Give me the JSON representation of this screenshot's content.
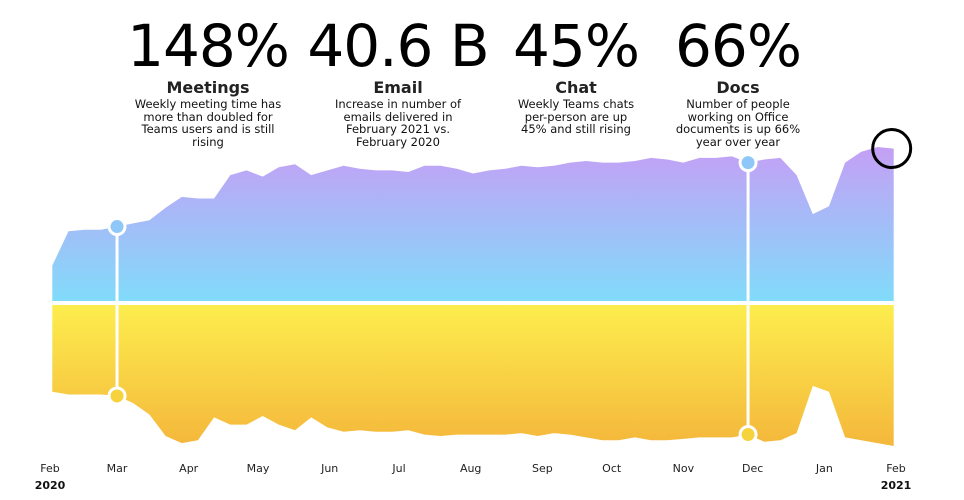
{
  "stats": [
    {
      "value": "148%",
      "name": "Meetings",
      "description": "Weekly meeting time has more than doubled for Teams users and is still rising"
    },
    {
      "value": "40.6 B",
      "name": "Email",
      "description": "Increase in number of emails delivered in February 2021 vs. February 2020"
    },
    {
      "value": "45%",
      "name": "Chat",
      "description": "Weekly Teams chats per-person are up 45% and still rising"
    },
    {
      "value": "66%",
      "name": "Docs",
      "description": "Number of people working on Office documents is up 66% year over year"
    }
  ],
  "chart_data": {
    "type": "area",
    "title": "",
    "xlabel": "",
    "ylabel": "",
    "grid": false,
    "legend": "none",
    "x_ticks": [
      {
        "date": "2020-02-01",
        "label": "Feb",
        "year": "2020"
      },
      {
        "date": "2020-03-01",
        "label": "Mar"
      },
      {
        "date": "2020-04-01",
        "label": "Apr"
      },
      {
        "date": "2020-05-01",
        "label": "May"
      },
      {
        "date": "2020-06-01",
        "label": "Jun"
      },
      {
        "date": "2020-07-01",
        "label": "Jul"
      },
      {
        "date": "2020-08-01",
        "label": "Aug"
      },
      {
        "date": "2020-09-01",
        "label": "Sep"
      },
      {
        "date": "2020-10-01",
        "label": "Oct"
      },
      {
        "date": "2020-11-01",
        "label": "Nov"
      },
      {
        "date": "2020-12-01",
        "label": "Dec"
      },
      {
        "date": "2021-01-01",
        "label": "Jan"
      },
      {
        "date": "2021-02-01",
        "label": "Feb",
        "year": "2021"
      }
    ],
    "x": [
      "2020-02-02",
      "2020-02-09",
      "2020-02-16",
      "2020-02-23",
      "2020-03-01",
      "2020-03-08",
      "2020-03-15",
      "2020-03-22",
      "2020-03-29",
      "2020-04-05",
      "2020-04-12",
      "2020-04-19",
      "2020-04-26",
      "2020-05-03",
      "2020-05-10",
      "2020-05-17",
      "2020-05-24",
      "2020-05-31",
      "2020-06-07",
      "2020-06-14",
      "2020-06-21",
      "2020-06-28",
      "2020-07-05",
      "2020-07-12",
      "2020-07-19",
      "2020-07-26",
      "2020-08-02",
      "2020-08-09",
      "2020-08-16",
      "2020-08-23",
      "2020-08-30",
      "2020-09-06",
      "2020-09-13",
      "2020-09-20",
      "2020-09-27",
      "2020-10-04",
      "2020-10-11",
      "2020-10-18",
      "2020-10-25",
      "2020-11-01",
      "2020-11-08",
      "2020-11-15",
      "2020-11-22",
      "2020-11-29",
      "2020-12-06",
      "2020-12-13",
      "2020-12-20",
      "2020-12-27",
      "2021-01-03",
      "2021-01-10",
      "2021-01-17",
      "2021-01-24",
      "2021-01-31"
    ],
    "series": [
      {
        "values": [
          24,
          46,
          47,
          47,
          49,
          51,
          53,
          61,
          68,
          67,
          67,
          82,
          85,
          81,
          87,
          89,
          82,
          85,
          88,
          86,
          85,
          85,
          84,
          88,
          88,
          86,
          83,
          85,
          86,
          88,
          87,
          88,
          90,
          91,
          90,
          90,
          91,
          93,
          92,
          90,
          93,
          93,
          94,
          90,
          92,
          93,
          82,
          57,
          62,
          90,
          97,
          100,
          99
        ],
        "direction": "up",
        "color_top": "#c59ff5",
        "color_bottom": "#80dcfa"
      },
      {
        "values": [
          62,
          64,
          64,
          64,
          65,
          70,
          78,
          93,
          98,
          96,
          80,
          85,
          85,
          79,
          85,
          89,
          80,
          87,
          90,
          89,
          90,
          90,
          89,
          92,
          93,
          92,
          92,
          92,
          92,
          91,
          93,
          91,
          92,
          94,
          96,
          96,
          94,
          96,
          96,
          95,
          94,
          94,
          94,
          92,
          97,
          96,
          91,
          58,
          62,
          94,
          96,
          98,
          100
        ],
        "direction": "down",
        "color_top": "#fdee4e",
        "color_bottom": "#f4b73b"
      }
    ],
    "markers": [
      {
        "date": "2020-03-01",
        "series_index": 0,
        "color": "#8fc8f8"
      },
      {
        "date": "2020-03-01",
        "series_index": 1,
        "color": "#f6d23c"
      },
      {
        "date": "2020-11-29",
        "series_index": 0,
        "color": "#8fc8f8"
      },
      {
        "date": "2020-11-29",
        "series_index": 1,
        "color": "#f6d23c"
      }
    ],
    "highlight": {
      "date": "2021-01-31",
      "series_index": 0,
      "color": "#000000"
    }
  }
}
